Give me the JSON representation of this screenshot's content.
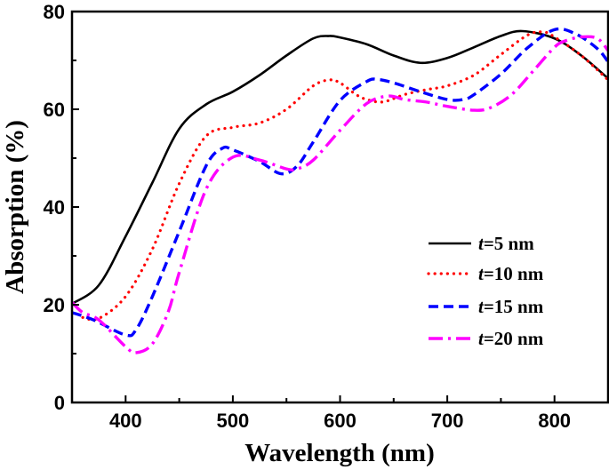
{
  "chart_data": {
    "type": "line",
    "title": "",
    "xlabel": "Wavelength (nm)",
    "ylabel": "Absorption (%)",
    "xlim": [
      350,
      850
    ],
    "ylim": [
      0,
      80
    ],
    "xticks": [
      400,
      500,
      600,
      700,
      800
    ],
    "yticks": [
      0,
      20,
      40,
      60,
      80
    ],
    "grid": false,
    "legend_position": "center-right",
    "series": [
      {
        "name_prefix": "t",
        "name": "=5 nm",
        "color": "#000000",
        "style": "solid",
        "x": [
          350,
          375,
          400,
          425,
          450,
          475,
          500,
          525,
          550,
          575,
          590,
          600,
          625,
          650,
          675,
          700,
          725,
          750,
          770,
          800,
          825,
          850
        ],
        "y": [
          20.2,
          24,
          34,
          45,
          56,
          61,
          63.6,
          67,
          71,
          74.5,
          75,
          74.7,
          73.3,
          71,
          69.5,
          70.5,
          72.7,
          75,
          76,
          74.5,
          71,
          66.3
        ]
      },
      {
        "name_prefix": "t",
        "name": "=10 nm",
        "color": "#ff0000",
        "style": "dotted",
        "x": [
          360,
          375,
          400,
          425,
          450,
          475,
          500,
          525,
          550,
          575,
          590,
          600,
          615,
          625,
          640,
          660,
          680,
          700,
          725,
          750,
          775,
          790,
          800,
          825,
          850
        ],
        "y": [
          17.4,
          17.2,
          21.7,
          31.4,
          44.8,
          54.5,
          56.3,
          57.2,
          60,
          64.8,
          66,
          65.4,
          63,
          62,
          61.5,
          63,
          64,
          64.8,
          67,
          71.2,
          75.2,
          75.8,
          74.8,
          71,
          66
        ]
      },
      {
        "name_prefix": "t",
        "name": "=15 nm",
        "color": "#0000ff",
        "style": "dashed",
        "x": [
          350,
          370,
          400,
          410,
          425,
          450,
          475,
          490,
          500,
          525,
          545,
          560,
          575,
          600,
          625,
          635,
          650,
          675,
          700,
          715,
          725,
          750,
          775,
          800,
          820,
          840,
          850
        ],
        "y": [
          18.4,
          16.9,
          13.8,
          15,
          21.7,
          35,
          48.4,
          52,
          51.7,
          49.3,
          46.8,
          48.4,
          53.3,
          61.8,
          65.7,
          66.1,
          65.4,
          63.6,
          62,
          62,
          63,
          67.2,
          72.6,
          76.3,
          75.4,
          72.4,
          69.7
        ]
      },
      {
        "name_prefix": "t",
        "name": "=20 nm",
        "color": "#ff00ff",
        "style": "dash-dot",
        "x": [
          350,
          360,
          375,
          400,
          410,
          425,
          440,
          450,
          475,
          500,
          525,
          550,
          560,
          575,
          600,
          625,
          645,
          660,
          680,
          700,
          725,
          740,
          760,
          780,
          800,
          810,
          825,
          840,
          850
        ],
        "y": [
          20.5,
          18.4,
          16.9,
          11.4,
          10.2,
          12,
          18.7,
          26.6,
          43.6,
          50.2,
          49.6,
          47.8,
          47.8,
          49.6,
          55.7,
          61.2,
          62.7,
          62,
          61.5,
          60.6,
          59.8,
          60.3,
          63,
          67.8,
          72.7,
          74,
          74.8,
          74.5,
          72
        ]
      }
    ]
  }
}
